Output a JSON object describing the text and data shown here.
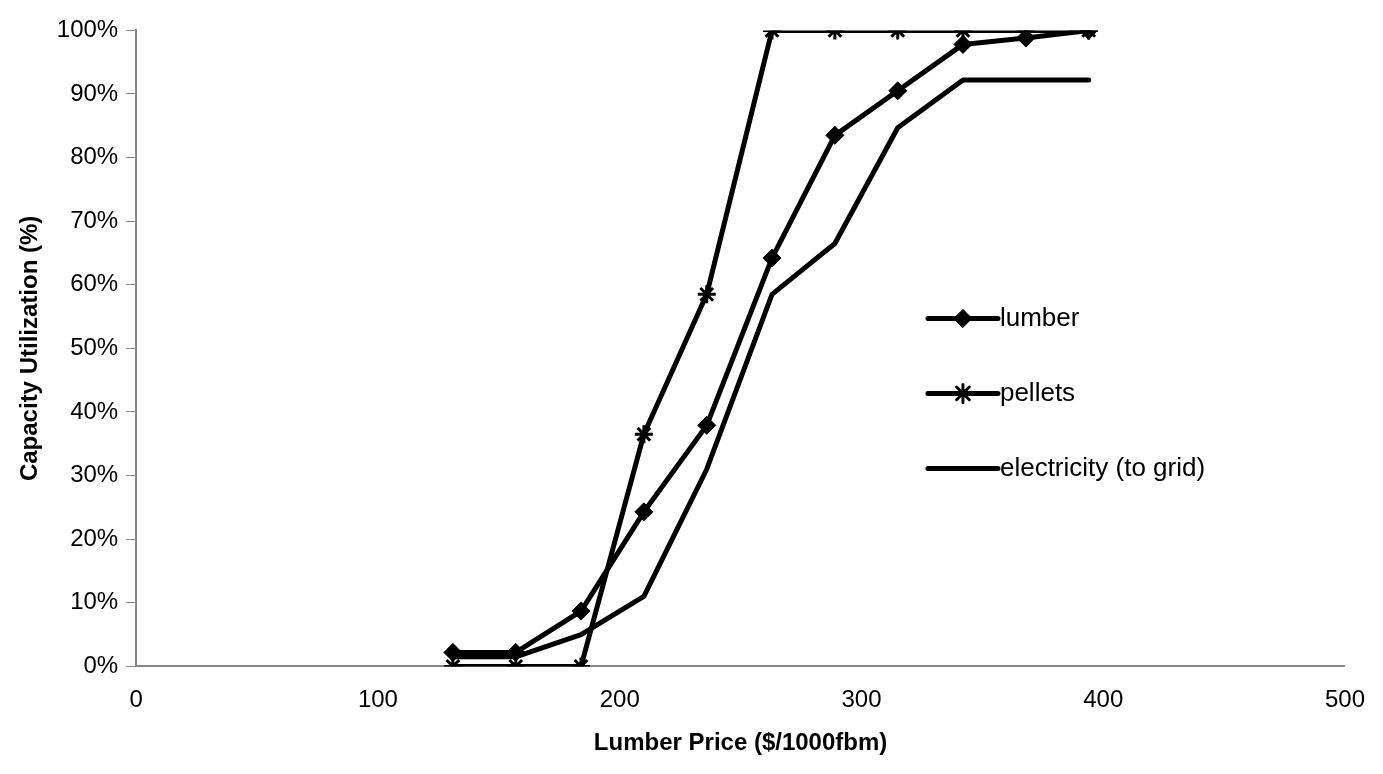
{
  "chart_data": {
    "type": "line",
    "xlabel": "Lumber Price ($/1000fbm)",
    "ylabel": "Capacity Utilization (%)",
    "x": [
      131,
      157,
      184,
      210,
      236,
      263,
      289,
      315,
      342,
      368,
      394
    ],
    "xlim": [
      0,
      500
    ],
    "xticks": [
      0,
      100,
      200,
      300,
      400,
      500
    ],
    "ylim": [
      0,
      100
    ],
    "yticks": [
      {
        "value": 0,
        "label": "0%"
      },
      {
        "value": 10,
        "label": "10%"
      },
      {
        "value": 20,
        "label": "20%"
      },
      {
        "value": 30,
        "label": "30%"
      },
      {
        "value": 40,
        "label": "40%"
      },
      {
        "value": 50,
        "label": "50%"
      },
      {
        "value": 60,
        "label": "60%"
      },
      {
        "value": 70,
        "label": "70%"
      },
      {
        "value": 80,
        "label": "80%"
      },
      {
        "value": 90,
        "label": "90%"
      },
      {
        "value": 100,
        "label": "100%"
      }
    ],
    "grid": false,
    "legend": "right",
    "line_style": "solid",
    "series": [
      {
        "name": "lumber",
        "color": "#000000",
        "marker": "diamond",
        "values": [
          2.2,
          2.2,
          8.7,
          24.3,
          37.9,
          64.2,
          83.5,
          90.5,
          97.8,
          98.8,
          100
        ]
      },
      {
        "name": "pellets",
        "color": "#000000",
        "marker": "cross",
        "values": [
          0,
          0,
          0,
          36.5,
          58.5,
          100,
          100,
          100,
          100,
          100,
          100
        ]
      },
      {
        "name": "electricity (to grid)",
        "color": "#000000",
        "marker": "none",
        "values": [
          1.5,
          1.5,
          5,
          11,
          31,
          58.5,
          66.5,
          84.7,
          92.2,
          92.2,
          92.2
        ]
      }
    ]
  }
}
